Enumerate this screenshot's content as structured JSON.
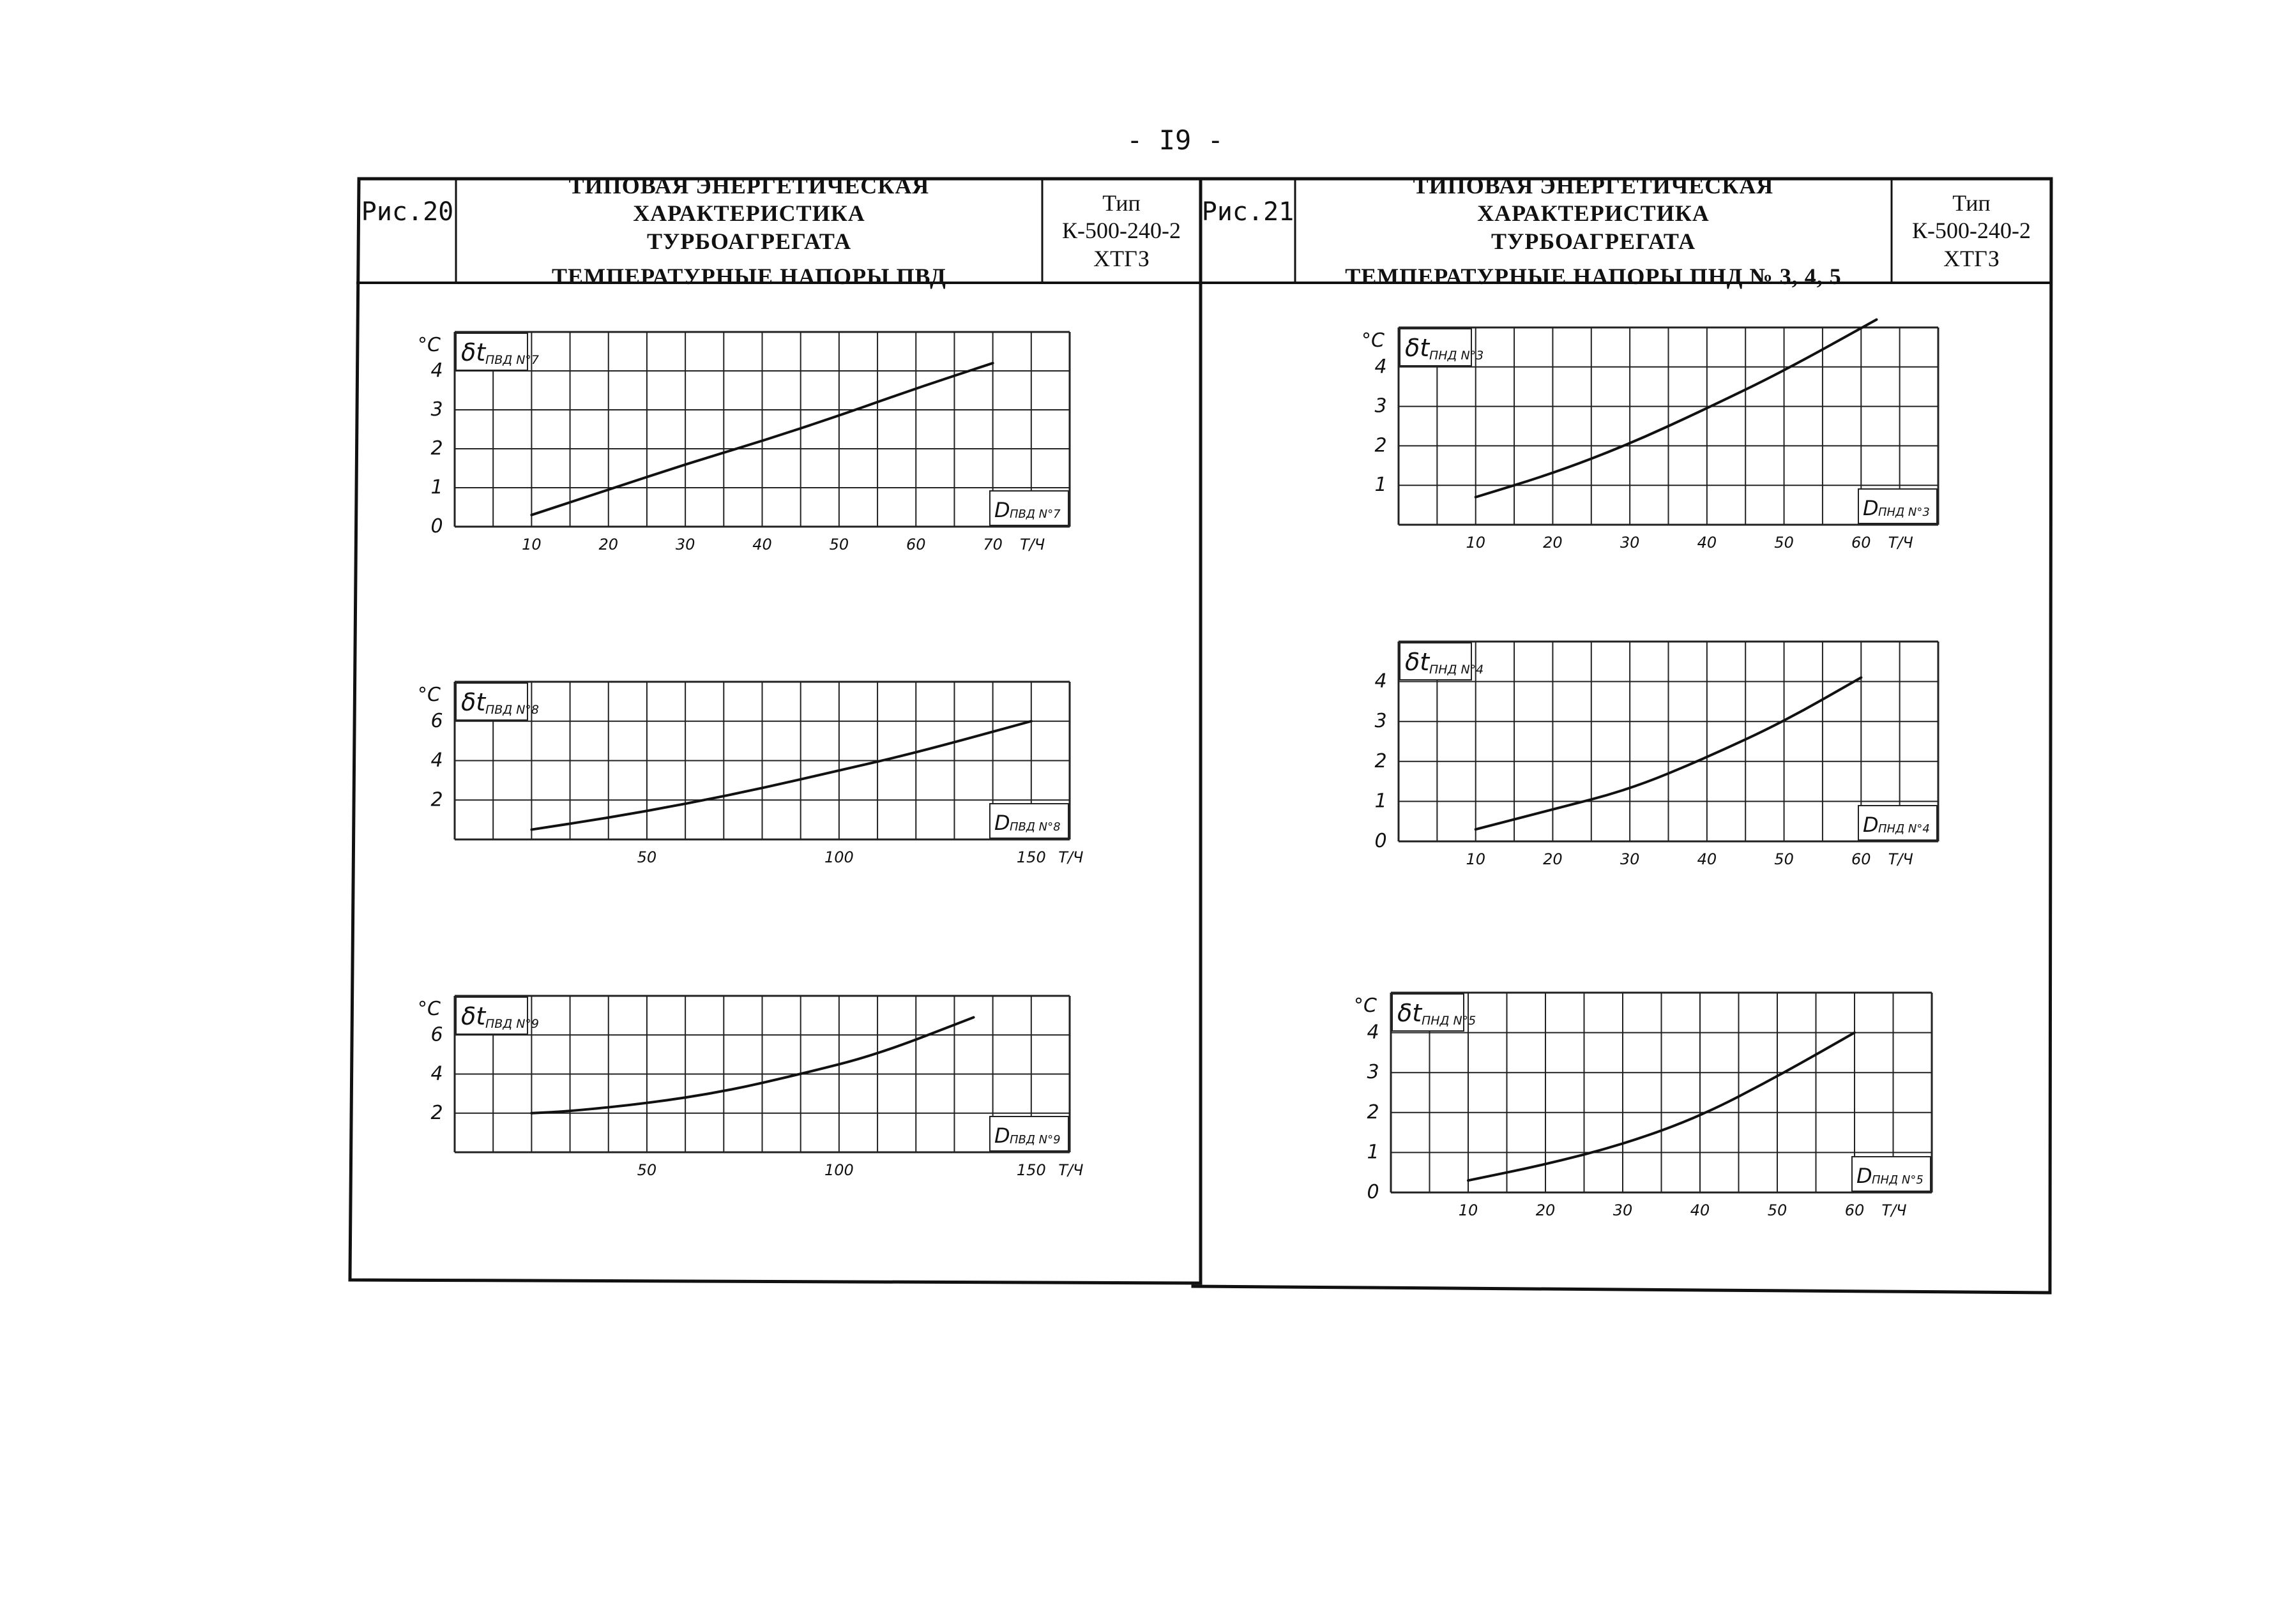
{
  "page_number": "- I9 -",
  "panels": [
    {
      "fig_label": "Рис.20",
      "title_lines": [
        "ТИПОВАЯ ЭНЕРГЕТИЧЕСКАЯ ХАРАКТЕРИСТИКА",
        "ТУРБОАГРЕГАТА",
        "ТЕМПЕРАТУРНЫЕ НАПОРЫ ПВД"
      ],
      "type_lines": [
        "Тип",
        "К-500-240-2",
        "ХТГЗ"
      ]
    },
    {
      "fig_label": "Рис.21",
      "title_lines": [
        "ТИПОВАЯ ЭНЕРГЕТИЧЕСКАЯ ХАРАКТЕРИСТИКА",
        "ТУРБОАГРЕГАТА",
        "ТЕМПЕРАТУРНЫЕ НАПОРЫ ПНД № 3, 4, 5"
      ],
      "type_lines": [
        "Тип",
        "К-500-240-2",
        "ХТГЗ"
      ]
    }
  ],
  "chart_data": [
    {
      "type": "line",
      "ylabel_symbol": "δt",
      "ylabel_sub": "ПВД N°7",
      "y_unit": "°C",
      "xlabel_symbol": "D",
      "xlabel_sub": "ПВД N°7",
      "x_unit": "Т/Ч",
      "x_ticks": [
        "10",
        "20",
        "30",
        "40",
        "50",
        "60",
        "70"
      ],
      "y_ticks": [
        "0",
        "1",
        "2",
        "3",
        "4"
      ],
      "xlim": [
        0,
        80
      ],
      "ylim": [
        0,
        5
      ],
      "series": [
        {
          "x": [
            10,
            20,
            30,
            40,
            50,
            60,
            70
          ],
          "y": [
            0.3,
            0.95,
            1.6,
            2.2,
            2.85,
            3.55,
            4.2
          ]
        }
      ]
    },
    {
      "type": "line",
      "ylabel_symbol": "δt",
      "ylabel_sub": "ПВД N°8",
      "y_unit": "°C",
      "xlabel_symbol": "D",
      "xlabel_sub": "ПВД N°8",
      "x_unit": "Т/Ч",
      "x_ticks": [
        "50",
        "100",
        "150"
      ],
      "y_ticks": [
        "2",
        "4",
        "6"
      ],
      "xlim": [
        0,
        160
      ],
      "ylim": [
        0,
        8
      ],
      "series": [
        {
          "x": [
            20,
            40,
            60,
            80,
            100,
            120,
            150
          ],
          "y": [
            0.5,
            1.1,
            1.8,
            2.6,
            3.5,
            4.4,
            6.0
          ]
        }
      ]
    },
    {
      "type": "line",
      "ylabel_symbol": "δt",
      "ylabel_sub": "ПВД N°9",
      "y_unit": "°C",
      "xlabel_symbol": "D",
      "xlabel_sub": "ПВД N°9",
      "x_unit": "Т/Ч",
      "x_ticks": [
        "50",
        "100",
        "150"
      ],
      "y_ticks": [
        "2",
        "4",
        "6"
      ],
      "xlim": [
        0,
        160
      ],
      "ylim": [
        0,
        8
      ],
      "series": [
        {
          "x": [
            20,
            30,
            50,
            70,
            90,
            110,
            135
          ],
          "y": [
            2.0,
            2.1,
            2.5,
            3.1,
            4.0,
            5.0,
            6.9
          ]
        }
      ]
    },
    {
      "type": "line",
      "ylabel_symbol": "δt",
      "ylabel_sub": "ПНД N°3",
      "y_unit": "°C",
      "xlabel_symbol": "D",
      "xlabel_sub": "ПНД N°3",
      "x_unit": "Т/Ч",
      "x_ticks": [
        "10",
        "20",
        "30",
        "40",
        "50",
        "60"
      ],
      "y_ticks": [
        "1",
        "2",
        "3",
        "4"
      ],
      "xlim": [
        0,
        70
      ],
      "ylim": [
        0,
        5
      ],
      "series": [
        {
          "x": [
            10,
            20,
            30,
            40,
            50,
            62
          ],
          "y": [
            0.7,
            1.3,
            2.05,
            2.95,
            3.9,
            5.2
          ]
        }
      ]
    },
    {
      "type": "line",
      "ylabel_symbol": "δt",
      "ylabel_sub": "ПНД N°4",
      "y_unit": "",
      "xlabel_symbol": "D",
      "xlabel_sub": "ПНД N°4",
      "x_unit": "Т/Ч",
      "x_ticks": [
        "10",
        "20",
        "30",
        "40",
        "50",
        "60"
      ],
      "y_ticks": [
        "0",
        "1",
        "2",
        "3",
        "4"
      ],
      "xlim": [
        0,
        70
      ],
      "ylim": [
        0,
        5
      ],
      "series": [
        {
          "x": [
            10,
            20,
            30,
            40,
            50,
            60
          ],
          "y": [
            0.3,
            0.8,
            1.3,
            2.1,
            3.0,
            4.1
          ]
        }
      ]
    },
    {
      "type": "line",
      "ylabel_symbol": "δt",
      "ylabel_sub": "ПНД N°5",
      "y_unit": "°C",
      "xlabel_symbol": "D",
      "xlabel_sub": "ПНД N°5",
      "x_unit": "Т/Ч",
      "x_ticks": [
        "10",
        "20",
        "30",
        "40",
        "50",
        "60"
      ],
      "y_ticks": [
        "0",
        "1",
        "2",
        "3",
        "4"
      ],
      "xlim": [
        0,
        70
      ],
      "ylim": [
        0,
        5
      ],
      "series": [
        {
          "x": [
            10,
            20,
            30,
            40,
            50,
            60
          ],
          "y": [
            0.3,
            0.7,
            1.2,
            1.9,
            2.9,
            4.0
          ]
        }
      ]
    }
  ]
}
